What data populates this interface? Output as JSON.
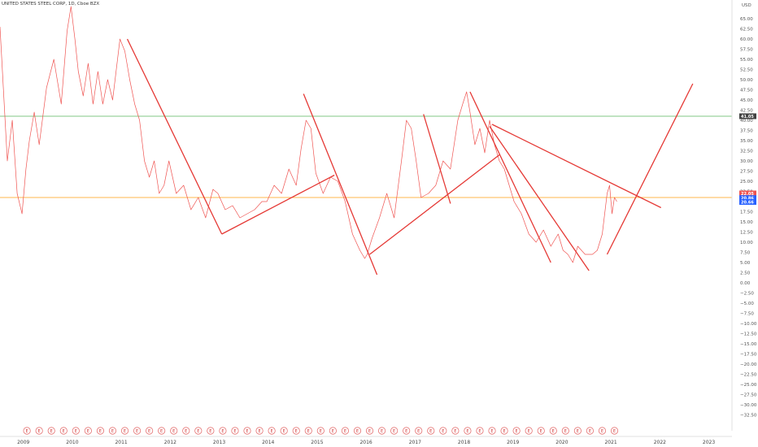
{
  "header": {
    "title": "UNITED STATES STEEL CORP, 1D, Cboe BZX"
  },
  "chart_data": {
    "type": "line",
    "currency": "USD",
    "y_ticks": [
      65,
      62.5,
      60,
      57.5,
      55,
      52.5,
      50,
      47.5,
      45,
      42.5,
      40,
      37.5,
      35,
      32.5,
      30,
      27.5,
      25,
      22.5,
      20,
      17.5,
      15,
      12.5,
      10,
      7.5,
      5,
      2.5,
      0,
      -2.5,
      -5,
      -7.5,
      -10,
      -12.5,
      -15,
      -17.5,
      -20,
      -22.5,
      -25,
      -27.5,
      -30,
      -32.5
    ],
    "ylim": [
      -34,
      68
    ],
    "xlim": [
      2008.55,
      2023.5
    ],
    "x_tick_labels": [
      "2009",
      "2010",
      "2011",
      "2012",
      "2013",
      "2014",
      "2015",
      "2016",
      "2017",
      "2018",
      "2019",
      "2020",
      "2021",
      "2022",
      "2023"
    ],
    "x_ticks": [
      2009,
      2010,
      2011,
      2012,
      2013,
      2014,
      2015,
      2016,
      2017,
      2018,
      2019,
      2020,
      2021,
      2022,
      2023
    ],
    "price_series": {
      "name": "",
      "color": "#ef5350",
      "x": [
        2008.55,
        2008.7,
        2008.8,
        2008.9,
        2009.0,
        2009.08,
        2009.15,
        2009.25,
        2009.35,
        2009.5,
        2009.65,
        2009.8,
        2009.92,
        2010.0,
        2010.08,
        2010.15,
        2010.25,
        2010.35,
        2010.45,
        2010.55,
        2010.65,
        2010.75,
        2010.85,
        2010.95,
        2011.0,
        2011.1,
        2011.2,
        2011.3,
        2011.4,
        2011.5,
        2011.6,
        2011.7,
        2011.8,
        2011.9,
        2012.0,
        2012.15,
        2012.3,
        2012.45,
        2012.6,
        2012.75,
        2012.9,
        2013.0,
        2013.15,
        2013.3,
        2013.45,
        2013.6,
        2013.75,
        2013.9,
        2014.0,
        2014.15,
        2014.3,
        2014.45,
        2014.6,
        2014.7,
        2014.8,
        2014.9,
        2015.0,
        2015.15,
        2015.3,
        2015.45,
        2015.6,
        2015.75,
        2015.9,
        2016.0,
        2016.05,
        2016.15,
        2016.3,
        2016.45,
        2016.6,
        2016.75,
        2016.85,
        2016.95,
        2017.05,
        2017.15,
        2017.3,
        2017.45,
        2017.6,
        2017.75,
        2017.9,
        2018.0,
        2018.08,
        2018.15,
        2018.25,
        2018.35,
        2018.45,
        2018.55,
        2018.65,
        2018.75,
        2018.85,
        2018.95,
        2019.05,
        2019.2,
        2019.35,
        2019.5,
        2019.65,
        2019.8,
        2019.95,
        2020.05,
        2020.15,
        2020.25,
        2020.35,
        2020.5,
        2020.65,
        2020.75,
        2020.85,
        2020.95,
        2021.0,
        2021.05,
        2021.1,
        2021.15
      ],
      "y": [
        63,
        30,
        40,
        22,
        17,
        28,
        35,
        42,
        34,
        48,
        55,
        44,
        62,
        68,
        60,
        52,
        46,
        54,
        44,
        52,
        44,
        50,
        45,
        55,
        60,
        57,
        50,
        44,
        40,
        30,
        26,
        30,
        22,
        24,
        30,
        22,
        24,
        18,
        21,
        16,
        23,
        22,
        18,
        19,
        16,
        17,
        18,
        20,
        20,
        24,
        22,
        28,
        24,
        33,
        40,
        38,
        27,
        22,
        26,
        25,
        20,
        12,
        8,
        6,
        7,
        11,
        16,
        22,
        16,
        30,
        40,
        38,
        30,
        21,
        22,
        24,
        30,
        28,
        40,
        44,
        47,
        42,
        34,
        38,
        32,
        40,
        34,
        30,
        28,
        24,
        20,
        17,
        12,
        10,
        13,
        9,
        12,
        8,
        7,
        5,
        9,
        7,
        7,
        8,
        12,
        22,
        24,
        17,
        21,
        20
      ],
      "last_value": 20.86
    },
    "horizontal_lines": [
      {
        "value": 41.0,
        "color": "#81c784",
        "label": "41.05"
      },
      {
        "value": 21.0,
        "color": "#ffb74d",
        "label": ""
      }
    ],
    "trend_lines": [
      {
        "x": [
          2011.15,
          2013.08
        ],
        "y": [
          60,
          12
        ]
      },
      {
        "x": [
          2013.08,
          2015.38
        ],
        "y": [
          12,
          26.5
        ]
      },
      {
        "x": [
          2014.75,
          2016.25
        ],
        "y": [
          46.5,
          2
        ]
      },
      {
        "x": [
          2016.1,
          2018.75
        ],
        "y": [
          7,
          31.5
        ]
      },
      {
        "x": [
          2017.2,
          2017.75
        ],
        "y": [
          41.5,
          19.5
        ]
      },
      {
        "x": [
          2018.15,
          2019.8
        ],
        "y": [
          47,
          5
        ]
      },
      {
        "x": [
          2018.55,
          2020.58
        ],
        "y": [
          38.5,
          3
        ]
      },
      {
        "x": [
          2018.6,
          2022.05
        ],
        "y": [
          39,
          18.5
        ]
      },
      {
        "x": [
          2020.95,
          2022.7
        ],
        "y": [
          7,
          49
        ]
      }
    ],
    "price_tags": [
      {
        "value": 22.0,
        "label": "22.05",
        "color": "#ef5350"
      },
      {
        "value": 20.86,
        "label": "20.86",
        "color": "#2962ff"
      },
      {
        "value": 19.9,
        "label": "20.66",
        "color": "#2962ff"
      }
    ],
    "event_markers": {
      "label": "E",
      "x": [
        2009.1,
        2009.35,
        2009.6,
        2009.85,
        2010.1,
        2010.35,
        2010.6,
        2010.85,
        2011.1,
        2011.35,
        2011.6,
        2011.85,
        2012.1,
        2012.35,
        2012.6,
        2012.85,
        2013.1,
        2013.35,
        2013.6,
        2013.85,
        2014.1,
        2014.35,
        2014.6,
        2014.85,
        2015.1,
        2015.35,
        2015.6,
        2015.85,
        2016.1,
        2016.35,
        2016.6,
        2016.85,
        2017.1,
        2017.35,
        2017.6,
        2017.85,
        2018.1,
        2018.35,
        2018.6,
        2018.85,
        2019.1,
        2019.35,
        2019.6,
        2019.85,
        2020.1,
        2020.35,
        2020.6,
        2020.85,
        2021.1
      ]
    },
    "xlabel": "",
    "ylabel": "",
    "grid": false,
    "legend": "none"
  }
}
